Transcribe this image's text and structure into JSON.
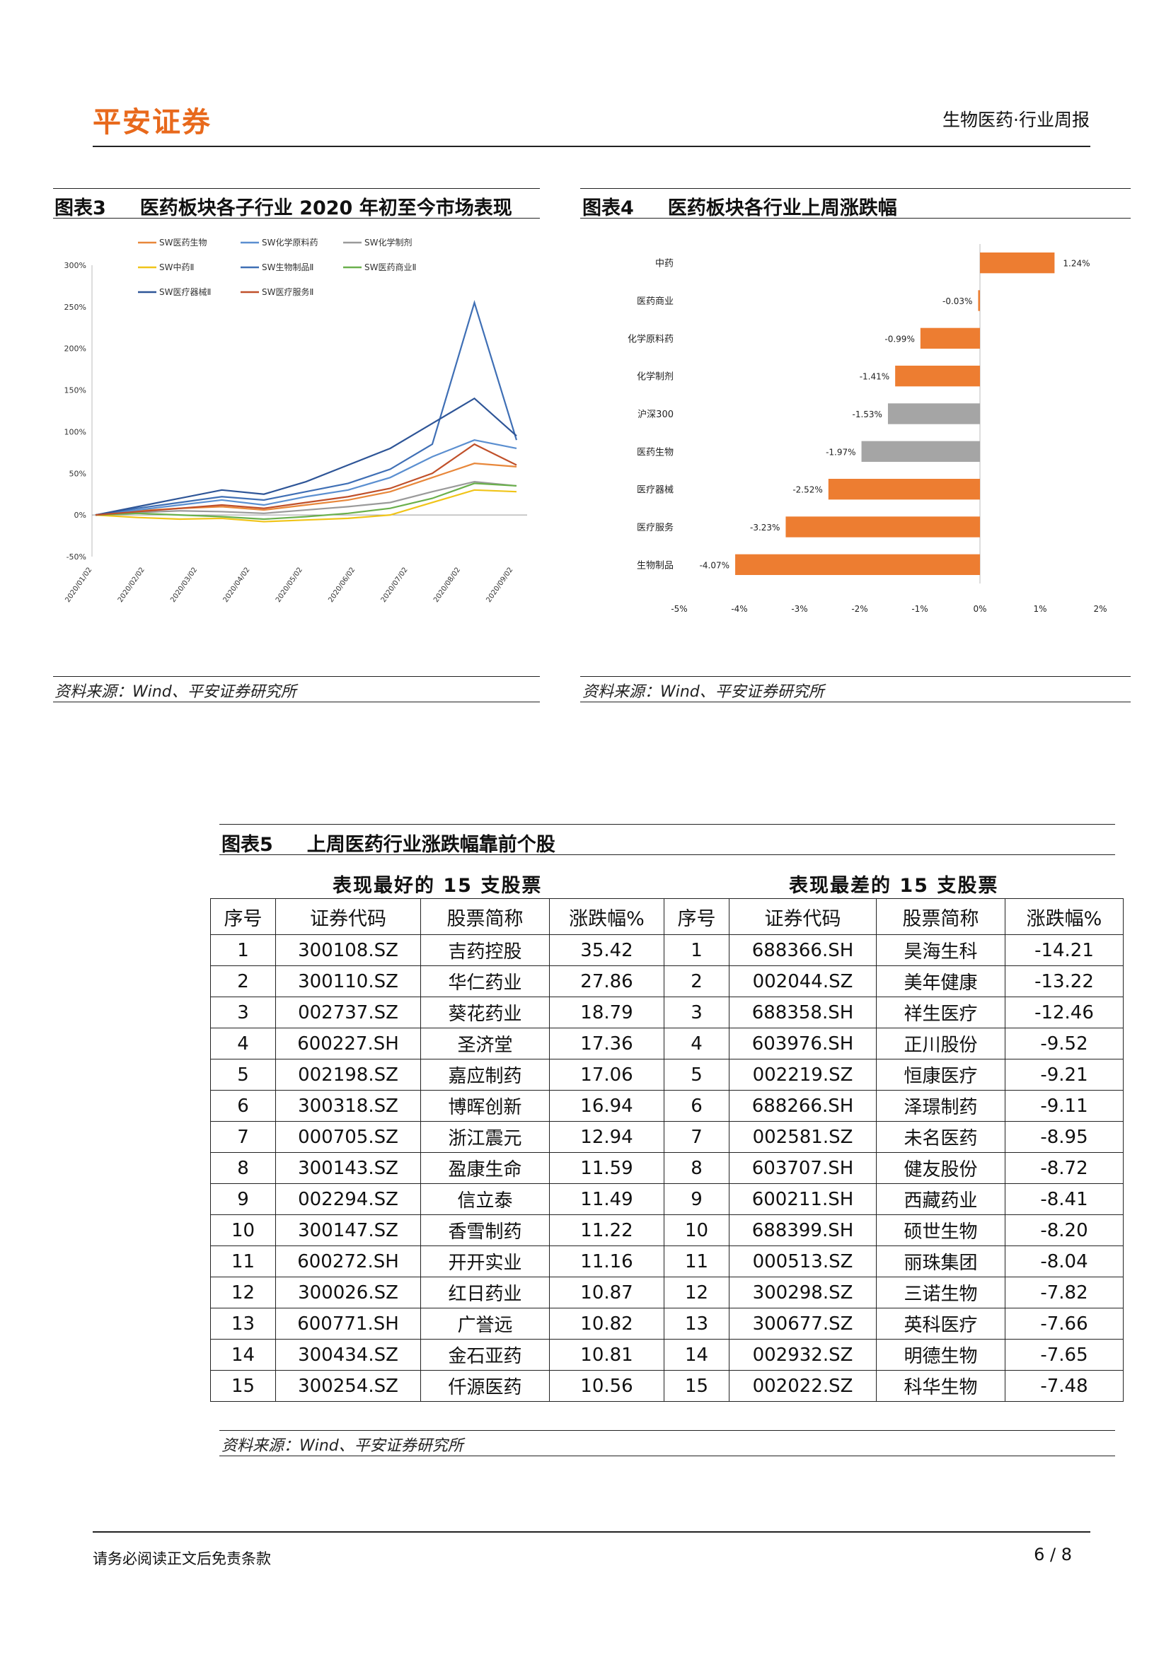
{
  "header": {
    "brand": "平安证券",
    "section": "生物医药·行业周报"
  },
  "fig3": {
    "number": "图表3",
    "title": "医药板块各子行业 2020 年初至今市场表现",
    "source": "资料来源：Wind、平安证券研究所",
    "chart_data": {
      "type": "line",
      "yticks": [
        "300%",
        "250%",
        "200%",
        "150%",
        "100%",
        "50%",
        "0%",
        "-50%"
      ],
      "ylim": [
        -50,
        300
      ],
      "xticks": [
        "2020/01/02",
        "2020/02/02",
        "2020/03/02",
        "2020/04/02",
        "2020/05/02",
        "2020/06/02",
        "2020/07/02",
        "2020/08/02",
        "2020/09/02"
      ],
      "legend_position": "top",
      "series": [
        {
          "name": "SW医药生物",
          "color": "#e8873a",
          "values": [
            0,
            5,
            8,
            10,
            6,
            12,
            18,
            28,
            45,
            62,
            58
          ]
        },
        {
          "name": "SW化学原料药",
          "color": "#5b8fd0",
          "values": [
            0,
            6,
            12,
            18,
            12,
            22,
            30,
            45,
            70,
            90,
            80
          ]
        },
        {
          "name": "SW化学制剂",
          "color": "#9a9a9a",
          "values": [
            0,
            3,
            5,
            4,
            2,
            6,
            10,
            15,
            28,
            40,
            35
          ]
        },
        {
          "name": "SW中药Ⅱ",
          "color": "#f0c419",
          "values": [
            0,
            -3,
            -5,
            -4,
            -8,
            -6,
            -4,
            0,
            15,
            30,
            28
          ]
        },
        {
          "name": "SW生物制品Ⅱ",
          "color": "#3f6fb5",
          "values": [
            0,
            8,
            15,
            22,
            18,
            28,
            38,
            55,
            85,
            255,
            90
          ]
        },
        {
          "name": "SW医药商业Ⅱ",
          "color": "#6ab04c",
          "values": [
            0,
            2,
            0,
            -2,
            -5,
            -2,
            2,
            8,
            20,
            38,
            35
          ]
        },
        {
          "name": "SW医疗器械Ⅱ",
          "color": "#2e5597",
          "values": [
            0,
            10,
            20,
            30,
            25,
            40,
            60,
            80,
            110,
            140,
            95
          ]
        },
        {
          "name": "SW医疗服务Ⅱ",
          "color": "#c0502a",
          "values": [
            0,
            4,
            8,
            12,
            8,
            15,
            22,
            32,
            50,
            85,
            60
          ]
        }
      ]
    }
  },
  "fig4": {
    "number": "图表4",
    "title": "医药板块各行业上周涨跌幅",
    "source": "资料来源：Wind、平安证券研究所",
    "chart_data": {
      "type": "bar",
      "orientation": "horizontal",
      "categories": [
        "中药",
        "医药商业",
        "化学原料药",
        "化学制剂",
        "沪深300",
        "医药生物",
        "医疗器械",
        "医疗服务",
        "生物制品"
      ],
      "values": [
        1.24,
        -0.03,
        -0.99,
        -1.41,
        -1.53,
        -1.97,
        -2.52,
        -3.23,
        -4.07
      ],
      "labels": [
        "1.24%",
        "-0.03%",
        "-0.99%",
        "-1.41%",
        "-1.53%",
        "-1.97%",
        "-2.52%",
        "-3.23%",
        "-4.07%"
      ],
      "highlight": [
        "orange",
        "orange",
        "orange",
        "orange",
        "gray",
        "gray",
        "orange",
        "orange",
        "orange"
      ],
      "colors": {
        "orange": "#ed7d31",
        "gray": "#a5a5a5"
      },
      "xlim": [
        -5,
        2
      ],
      "xticks": [
        "-5%",
        "-4%",
        "-3%",
        "-2%",
        "-1%",
        "0%",
        "1%",
        "2%"
      ]
    }
  },
  "fig5": {
    "number": "图表5",
    "title": "上周医药行业涨跌幅靠前个股",
    "best_title": "表现最好的 15 支股票",
    "worst_title": "表现最差的 15 支股票",
    "columns": [
      "序号",
      "证券代码",
      "股票简称",
      "涨跌幅%",
      "序号",
      "证券代码",
      "股票简称",
      "涨跌幅%"
    ],
    "rows": [
      [
        "1",
        "300108.SZ",
        "吉药控股",
        "35.42",
        "1",
        "688366.SH",
        "昊海生科",
        "-14.21"
      ],
      [
        "2",
        "300110.SZ",
        "华仁药业",
        "27.86",
        "2",
        "002044.SZ",
        "美年健康",
        "-13.22"
      ],
      [
        "3",
        "002737.SZ",
        "葵花药业",
        "18.79",
        "3",
        "688358.SH",
        "祥生医疗",
        "-12.46"
      ],
      [
        "4",
        "600227.SH",
        "圣济堂",
        "17.36",
        "4",
        "603976.SH",
        "正川股份",
        "-9.52"
      ],
      [
        "5",
        "002198.SZ",
        "嘉应制药",
        "17.06",
        "5",
        "002219.SZ",
        "恒康医疗",
        "-9.21"
      ],
      [
        "6",
        "300318.SZ",
        "博晖创新",
        "16.94",
        "6",
        "688266.SH",
        "泽璟制药",
        "-9.11"
      ],
      [
        "7",
        "000705.SZ",
        "浙江震元",
        "12.94",
        "7",
        "002581.SZ",
        "未名医药",
        "-8.95"
      ],
      [
        "8",
        "300143.SZ",
        "盈康生命",
        "11.59",
        "8",
        "603707.SH",
        "健友股份",
        "-8.72"
      ],
      [
        "9",
        "002294.SZ",
        "信立泰",
        "11.49",
        "9",
        "600211.SH",
        "西藏药业",
        "-8.41"
      ],
      [
        "10",
        "300147.SZ",
        "香雪制药",
        "11.22",
        "10",
        "688399.SH",
        "硕世生物",
        "-8.20"
      ],
      [
        "11",
        "600272.SH",
        "开开实业",
        "11.16",
        "11",
        "000513.SZ",
        "丽珠集团",
        "-8.04"
      ],
      [
        "12",
        "300026.SZ",
        "红日药业",
        "10.87",
        "12",
        "300298.SZ",
        "三诺生物",
        "-7.82"
      ],
      [
        "13",
        "600771.SH",
        "广誉远",
        "10.82",
        "13",
        "300677.SZ",
        "英科医疗",
        "-7.66"
      ],
      [
        "14",
        "300434.SZ",
        "金石亚药",
        "10.81",
        "14",
        "002932.SZ",
        "明德生物",
        "-7.65"
      ],
      [
        "15",
        "300254.SZ",
        "仟源医药",
        "10.56",
        "15",
        "002022.SZ",
        "科华生物",
        "-7.48"
      ]
    ],
    "source": "资料来源：Wind、平安证券研究所"
  },
  "footer": {
    "disclaimer": "请务必阅读正文后免责条款",
    "page": "6 / 8"
  }
}
